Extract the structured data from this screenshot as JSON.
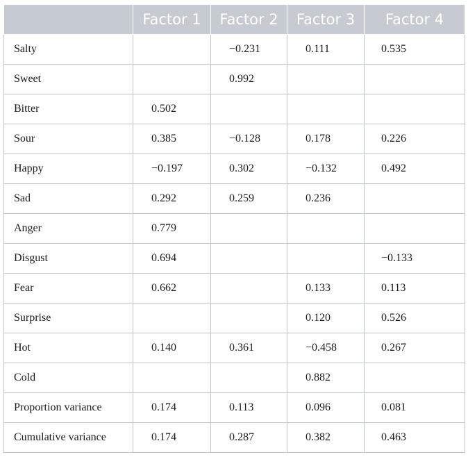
{
  "table": {
    "headers": [
      "",
      "Factor 1",
      "Factor 2",
      "Factor 3",
      "Factor 4"
    ],
    "rows": [
      {
        "label": "Salty",
        "values": [
          "",
          "−0.231",
          "0.111",
          "0.535"
        ]
      },
      {
        "label": "Sweet",
        "values": [
          "",
          "0.992",
          "",
          ""
        ]
      },
      {
        "label": "Bitter",
        "values": [
          "0.502",
          "",
          "",
          ""
        ]
      },
      {
        "label": "Sour",
        "values": [
          "0.385",
          "−0.128",
          "0.178",
          "0.226"
        ]
      },
      {
        "label": "Happy",
        "values": [
          "−0.197",
          "0.302",
          "−0.132",
          "0.492"
        ]
      },
      {
        "label": "Sad",
        "values": [
          "0.292",
          "0.259",
          "0.236",
          ""
        ]
      },
      {
        "label": "Anger",
        "values": [
          "0.779",
          "",
          "",
          ""
        ]
      },
      {
        "label": "Disgust",
        "values": [
          "0.694",
          "",
          "",
          "−0.133"
        ]
      },
      {
        "label": "Fear",
        "values": [
          "0.662",
          "",
          "0.133",
          "0.113"
        ]
      },
      {
        "label": "Surprise",
        "values": [
          "",
          "",
          "0.120",
          "0.526"
        ]
      },
      {
        "label": "Hot",
        "values": [
          "0.140",
          "0.361",
          "−0.458",
          "0.267"
        ]
      },
      {
        "label": "Cold",
        "values": [
          "",
          "",
          "0.882",
          ""
        ]
      },
      {
        "label": "Proportion variance",
        "values": [
          "0.174",
          "0.113",
          "0.096",
          "0.081"
        ]
      },
      {
        "label": "Cumulative variance",
        "values": [
          "0.174",
          "0.287",
          "0.382",
          "0.463"
        ]
      }
    ]
  },
  "colors": {
    "header_background": "#c6cbd1",
    "header_text": "#ffffff",
    "grid_line": "#bfc4c9"
  }
}
